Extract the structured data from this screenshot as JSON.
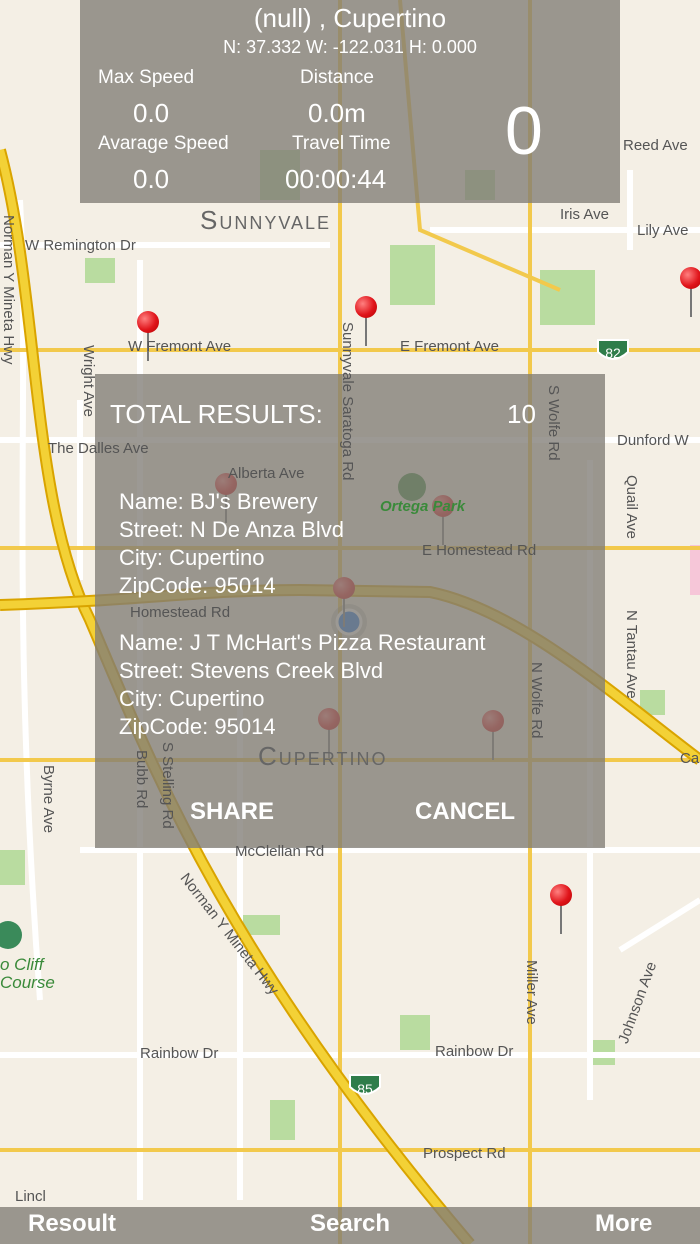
{
  "header": {
    "location": "(null) , Cupertino",
    "coords": "N: 37.332 W: -122.031 H: 0.000",
    "max_speed_label": "Max Speed",
    "max_speed": "0.0",
    "distance_label": "Distance",
    "distance": "0.0m",
    "avg_speed_label": "Avarage Speed",
    "avg_speed": "0.0",
    "travel_time_label": "Travel Time",
    "travel_time": "00:00:44",
    "speed": "0"
  },
  "results": {
    "total_label": "TOTAL RESULTS:",
    "total": "10",
    "items": [
      {
        "name": "Name: BJ's Brewery",
        "street": "Street: N De Anza Blvd",
        "city": "City: Cupertino",
        "zip": "ZipCode: 95014"
      },
      {
        "name": "Name: J T McHart's Pizza Restaurant",
        "street": "Street: Stevens Creek Blvd",
        "city": "City: Cupertino",
        "zip": "ZipCode: 95014"
      }
    ],
    "share": "SHARE",
    "cancel": "CANCEL"
  },
  "toolbar": {
    "resoult": "Resoult",
    "search": "Search",
    "more": "More"
  },
  "map": {
    "cities": [
      "Sunnyvale",
      "Cupertino"
    ],
    "streets": [
      "Reed Ave",
      "Iris Ave",
      "Lily Ave",
      "W Remington Dr",
      "W Fremont Ave",
      "E Fremont Ave",
      "The Dalles Ave",
      "Dunford W",
      "Alberta Ave",
      "Ortega Park",
      "Homestead Rd",
      "E Homestead Rd",
      "McClellan Rd",
      "Rainbow Dr",
      "Rainbow Dr",
      "Prospect Rd",
      "Norman Y Mineta Hwy",
      "Sunnyvale Saratoga Rd",
      "S Wolfe Rd",
      "N Wolfe Rd",
      "Wright Ave",
      "Quail Ave",
      "N Tantau Ave",
      "Byrne Ave",
      "Bubb Rd",
      "S Stelling Rd",
      "Miller Ave",
      "Johnson Ave",
      "Norman Y Mineta Hwy",
      "o Cliff",
      "Course",
      "Ca",
      "Lincl"
    ],
    "shields": [
      "82",
      "82",
      "85"
    ]
  }
}
